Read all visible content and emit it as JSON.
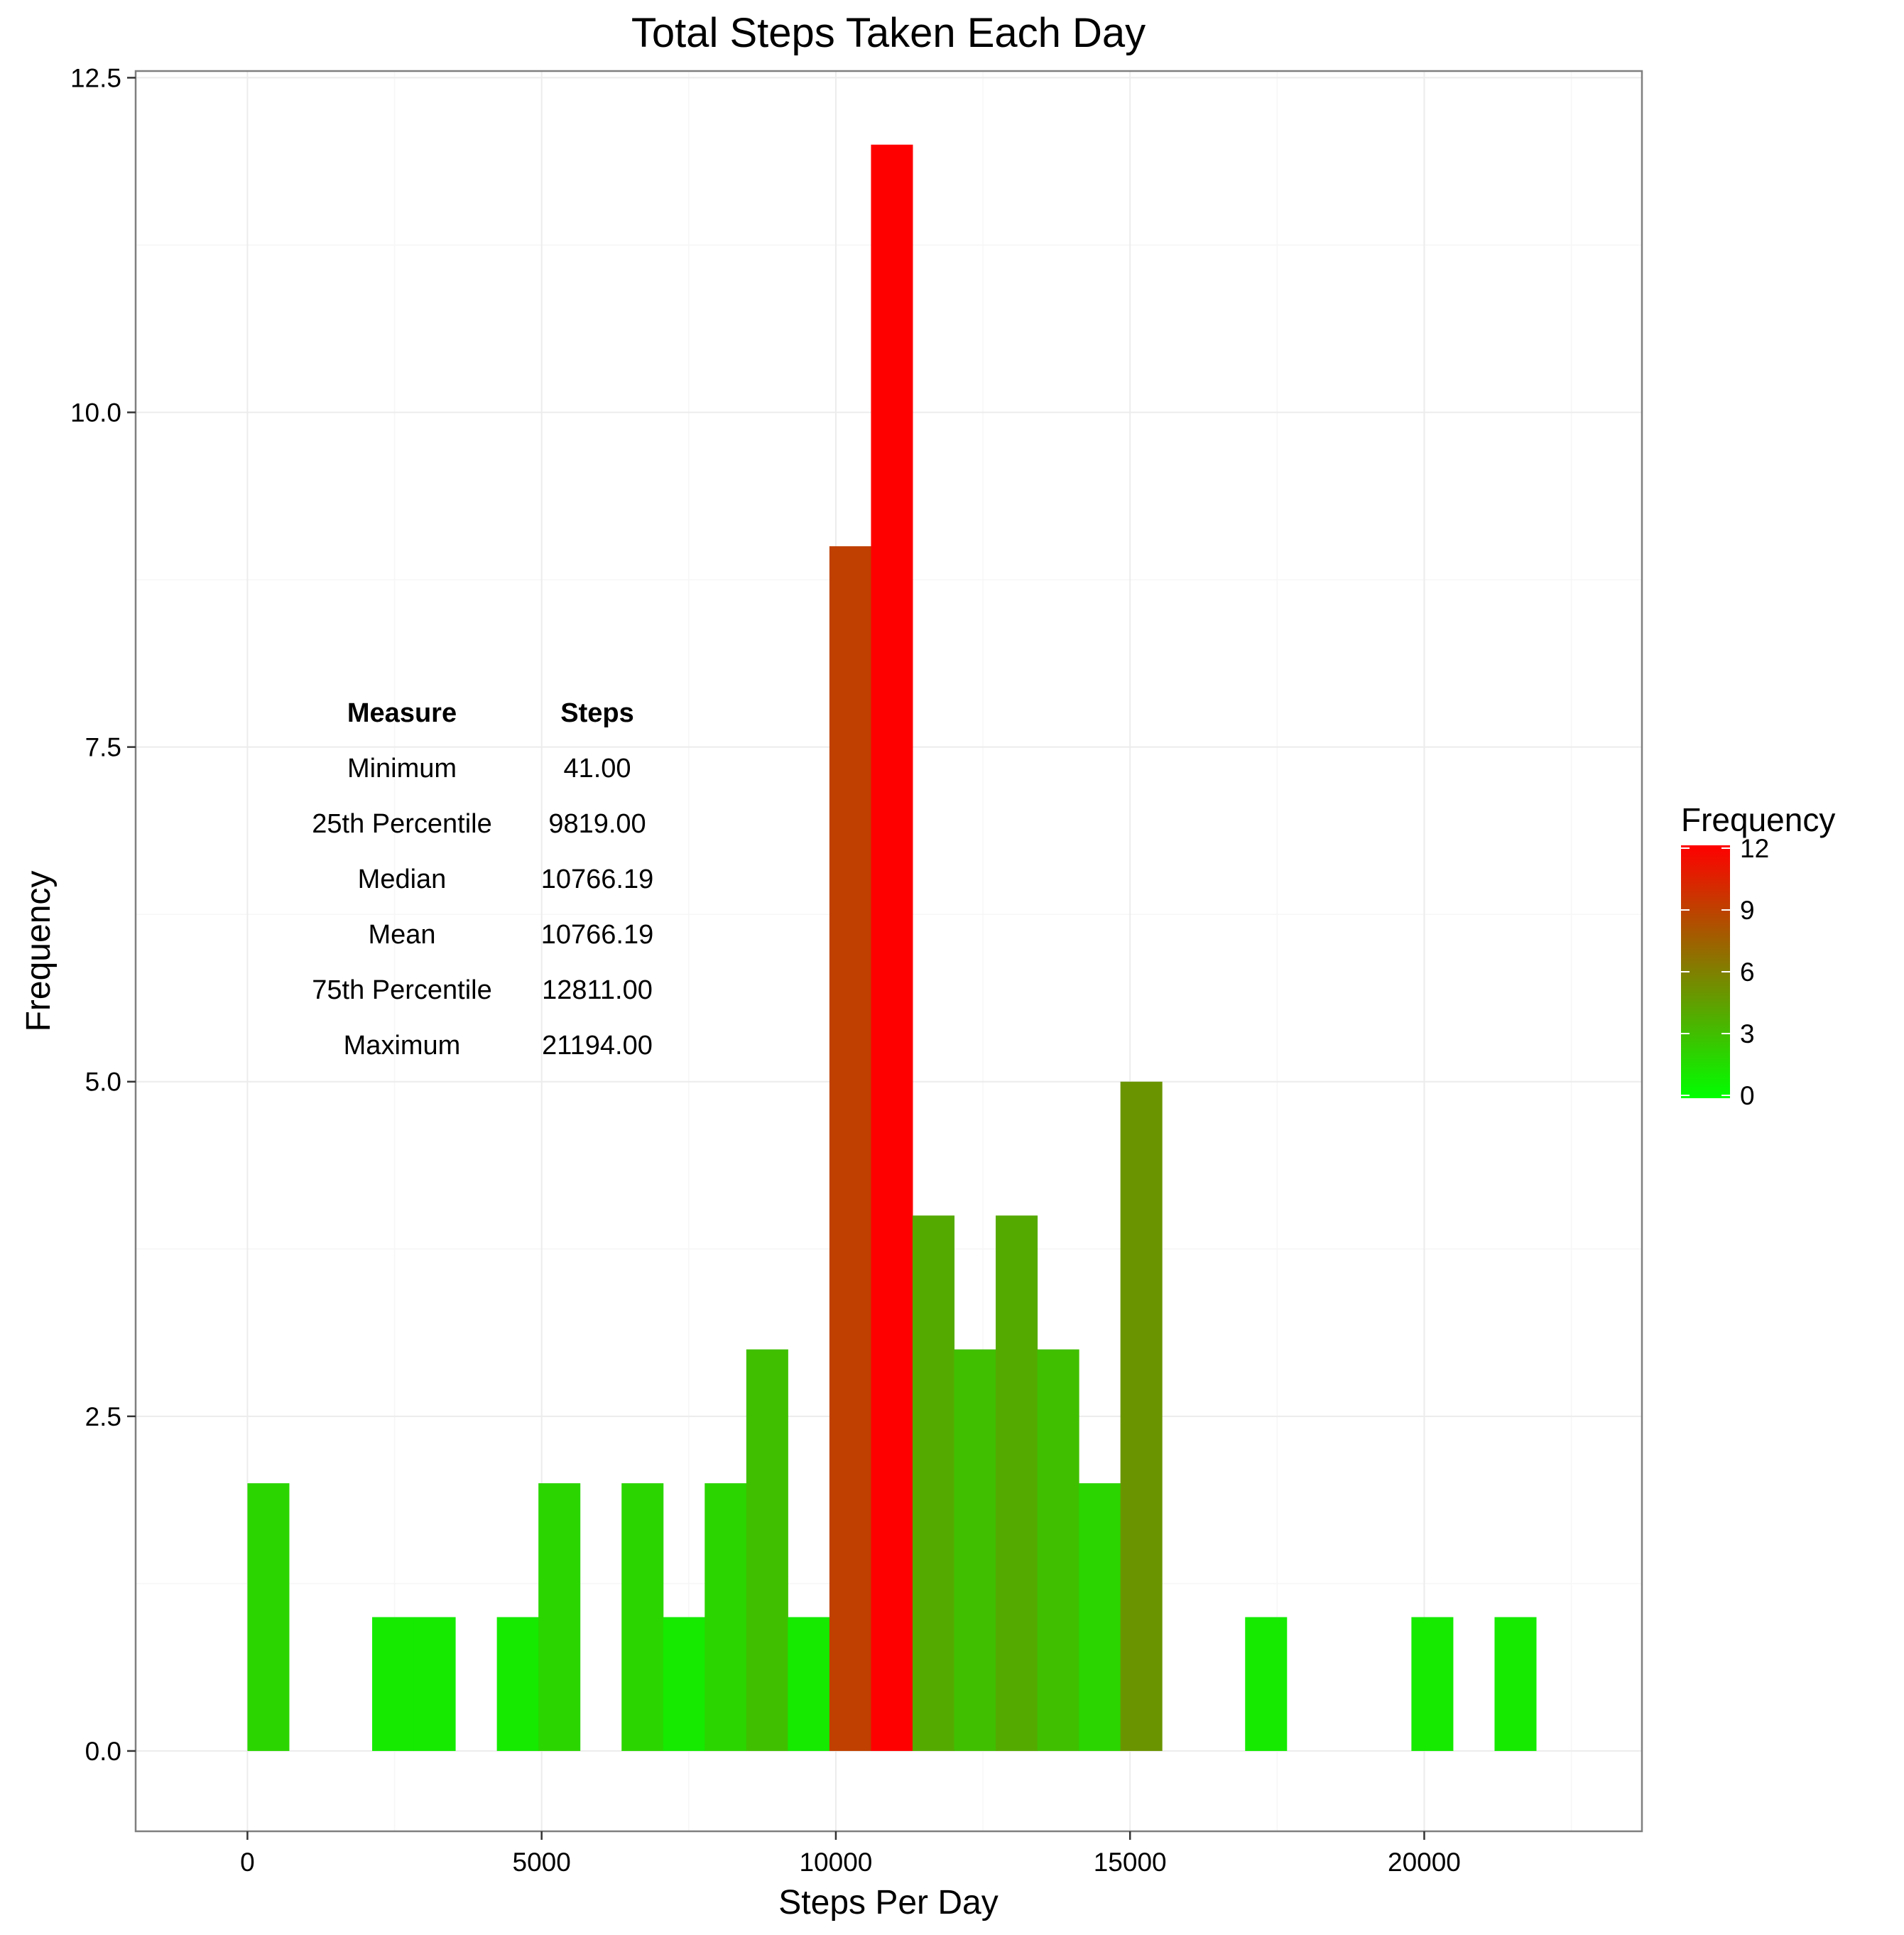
{
  "chart_data": {
    "type": "bar",
    "title": "Total Steps Taken Each Day",
    "xlabel": "Steps Per Day",
    "ylabel": "Frequency",
    "xlim": [
      -1900,
      23700
    ],
    "ylim": [
      -0.6,
      12.55
    ],
    "x_ticks": [
      "0",
      "5000",
      "10000",
      "15000",
      "20000"
    ],
    "x_tick_values": [
      0,
      5000,
      10000,
      15000,
      20000
    ],
    "y_ticks": [
      "0.0",
      "2.5",
      "5.0",
      "7.5",
      "10.0",
      "12.5"
    ],
    "y_tick_values": [
      0,
      2.5,
      5,
      7.5,
      10,
      12.5
    ],
    "grid": true,
    "bin_width": 706.5,
    "bins": [
      {
        "x": 0,
        "count": 2
      },
      {
        "x": 706.5,
        "count": 0
      },
      {
        "x": 1413,
        "count": 0
      },
      {
        "x": 2119.5,
        "count": 1
      },
      {
        "x": 2826,
        "count": 1
      },
      {
        "x": 3532.5,
        "count": 0
      },
      {
        "x": 4239,
        "count": 1
      },
      {
        "x": 4945.5,
        "count": 2
      },
      {
        "x": 5652,
        "count": 0
      },
      {
        "x": 6358.5,
        "count": 2
      },
      {
        "x": 7065,
        "count": 1
      },
      {
        "x": 7771.5,
        "count": 2
      },
      {
        "x": 8478,
        "count": 3
      },
      {
        "x": 9184.5,
        "count": 1
      },
      {
        "x": 9891,
        "count": 9
      },
      {
        "x": 10597.5,
        "count": 12
      },
      {
        "x": 11304,
        "count": 4
      },
      {
        "x": 12010.5,
        "count": 3
      },
      {
        "x": 12717,
        "count": 4
      },
      {
        "x": 13423.5,
        "count": 3
      },
      {
        "x": 14130,
        "count": 2
      },
      {
        "x": 14836.5,
        "count": 5
      },
      {
        "x": 15543,
        "count": 0
      },
      {
        "x": 16249.5,
        "count": 0
      },
      {
        "x": 16956,
        "count": 1
      },
      {
        "x": 17662.5,
        "count": 0
      },
      {
        "x": 18369,
        "count": 0
      },
      {
        "x": 19075.5,
        "count": 0
      },
      {
        "x": 19782,
        "count": 1
      },
      {
        "x": 20488.5,
        "count": 0
      },
      {
        "x": 21195,
        "count": 1
      }
    ],
    "colors": {
      "low": "#00ff00",
      "high": "#ff0000"
    },
    "legend": {
      "title": "Frequency",
      "placement": "right",
      "range": [
        0,
        12
      ],
      "labels": [
        "0",
        "3",
        "6",
        "9",
        "12"
      ],
      "label_values": [
        0,
        3,
        6,
        9,
        12
      ]
    },
    "summary_table": {
      "headers": [
        "Measure",
        "Steps"
      ],
      "rows": [
        [
          "Minimum",
          "41.00"
        ],
        [
          "25th Percentile",
          "9819.00"
        ],
        [
          "Median",
          "10766.19"
        ],
        [
          "Mean",
          "10766.19"
        ],
        [
          "75th Percentile",
          "12811.00"
        ],
        [
          "Maximum",
          "21194.00"
        ]
      ]
    }
  }
}
